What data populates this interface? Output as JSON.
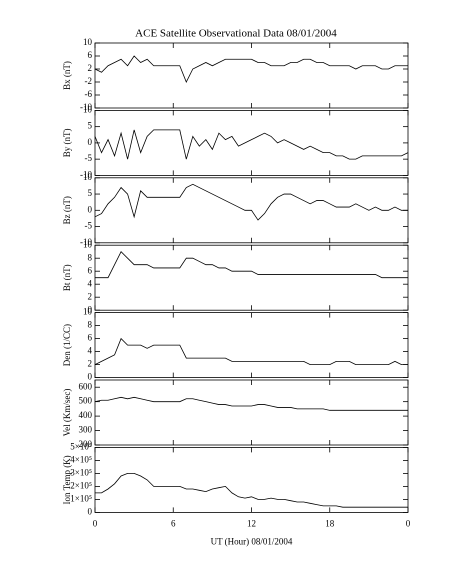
{
  "title": "ACE Satellite Observational Data   08/01/2004",
  "chart_data": [
    {
      "type": "line",
      "ylabel": "Bx (nT)",
      "ylim": [
        -10,
        10
      ],
      "yticks": [
        -10,
        -6,
        -2,
        2,
        6,
        10
      ],
      "xlim": [
        0,
        24
      ],
      "xticks": [
        0,
        6,
        12,
        18,
        {
          "value": 24,
          "label": "0"
        }
      ],
      "color": "#000000",
      "x": [
        0,
        0.5,
        1,
        1.5,
        2,
        2.5,
        3,
        3.5,
        4,
        4.5,
        5,
        5.5,
        6,
        6.5,
        7,
        7.5,
        8,
        8.5,
        9,
        9.5,
        10,
        10.5,
        11,
        11.5,
        12,
        12.5,
        13,
        13.5,
        14,
        14.5,
        15,
        15.5,
        16,
        16.5,
        17,
        17.5,
        18,
        18.5,
        19,
        19.5,
        20,
        20.5,
        21,
        21.5,
        22,
        22.5,
        23,
        23.5,
        24
      ],
      "values": [
        2,
        1,
        3,
        4,
        5,
        3,
        6,
        4,
        5,
        3,
        3,
        3,
        3,
        3,
        -2,
        2,
        3,
        4,
        3,
        4,
        5,
        5,
        5,
        5,
        5,
        4,
        4,
        3,
        3,
        3,
        4,
        4,
        5,
        5,
        4,
        4,
        3,
        3,
        3,
        3,
        2,
        3,
        3,
        3,
        2,
        2,
        3,
        3,
        3
      ]
    },
    {
      "type": "line",
      "ylabel": "By (nT)",
      "ylim": [
        -10,
        10
      ],
      "yticks": [
        -10,
        -5,
        0,
        5,
        10
      ],
      "xlim": [
        0,
        24
      ],
      "xticks": [
        0,
        6,
        12,
        18,
        {
          "value": 24,
          "label": "0"
        }
      ],
      "color": "#000000",
      "x": [
        0,
        0.5,
        1,
        1.5,
        2,
        2.5,
        3,
        3.5,
        4,
        4.5,
        5,
        5.5,
        6,
        6.5,
        7,
        7.5,
        8,
        8.5,
        9,
        9.5,
        10,
        10.5,
        11,
        11.5,
        12,
        12.5,
        13,
        13.5,
        14,
        14.5,
        15,
        15.5,
        16,
        16.5,
        17,
        17.5,
        18,
        18.5,
        19,
        19.5,
        20,
        20.5,
        21,
        21.5,
        22,
        22.5,
        23,
        23.5,
        24
      ],
      "values": [
        2,
        -3,
        1,
        -4,
        3,
        -5,
        4,
        -3,
        2,
        4,
        4,
        4,
        4,
        4,
        -5,
        2,
        -1,
        1,
        -2,
        3,
        1,
        2,
        -1,
        0,
        1,
        2,
        3,
        2,
        0,
        1,
        0,
        -1,
        -2,
        -1,
        -2,
        -3,
        -3,
        -4,
        -4,
        -5,
        -5,
        -4,
        -4,
        -4,
        -4,
        -4,
        -4,
        -4,
        -3
      ]
    },
    {
      "type": "line",
      "ylabel": "Bz (nT)",
      "ylim": [
        -10,
        10
      ],
      "yticks": [
        -10,
        -5,
        0,
        5,
        10
      ],
      "xlim": [
        0,
        24
      ],
      "xticks": [
        0,
        6,
        12,
        18,
        {
          "value": 24,
          "label": "0"
        }
      ],
      "color": "#000000",
      "x": [
        0,
        0.5,
        1,
        1.5,
        2,
        2.5,
        3,
        3.5,
        4,
        4.5,
        5,
        5.5,
        6,
        6.5,
        7,
        7.5,
        8,
        8.5,
        9,
        9.5,
        10,
        10.5,
        11,
        11.5,
        12,
        12.5,
        13,
        13.5,
        14,
        14.5,
        15,
        15.5,
        16,
        16.5,
        17,
        17.5,
        18,
        18.5,
        19,
        19.5,
        20,
        20.5,
        21,
        21.5,
        22,
        22.5,
        23,
        23.5,
        24
      ],
      "values": [
        -2,
        -1,
        2,
        4,
        7,
        5,
        -2,
        6,
        4,
        4,
        4,
        4,
        4,
        4,
        7,
        8,
        7,
        6,
        5,
        4,
        3,
        2,
        1,
        0,
        0,
        -3,
        -1,
        2,
        4,
        5,
        5,
        4,
        3,
        2,
        3,
        3,
        2,
        1,
        1,
        1,
        2,
        1,
        0,
        1,
        0,
        0,
        1,
        0,
        0
      ]
    },
    {
      "type": "line",
      "ylabel": "Bt (nT)",
      "ylim": [
        0,
        10
      ],
      "yticks": [
        0,
        2,
        4,
        6,
        8,
        10
      ],
      "xlim": [
        0,
        24
      ],
      "xticks": [
        0,
        6,
        12,
        18,
        {
          "value": 24,
          "label": "0"
        }
      ],
      "color": "#000000",
      "x": [
        0,
        0.5,
        1,
        1.5,
        2,
        2.5,
        3,
        3.5,
        4,
        4.5,
        5,
        5.5,
        6,
        6.5,
        7,
        7.5,
        8,
        8.5,
        9,
        9.5,
        10,
        10.5,
        11,
        11.5,
        12,
        12.5,
        13,
        13.5,
        14,
        14.5,
        15,
        15.5,
        16,
        16.5,
        17,
        17.5,
        18,
        18.5,
        19,
        19.5,
        20,
        20.5,
        21,
        21.5,
        22,
        22.5,
        23,
        23.5,
        24
      ],
      "values": [
        5,
        5,
        5,
        7,
        9,
        8,
        7,
        7,
        7,
        6.5,
        6.5,
        6.5,
        6.5,
        6.5,
        8,
        8,
        7.5,
        7,
        7,
        6.5,
        6.5,
        6,
        6,
        6,
        6,
        5.5,
        5.5,
        5.5,
        5.5,
        5.5,
        5.5,
        5.5,
        5.5,
        5.5,
        5.5,
        5.5,
        5.5,
        5.5,
        5.5,
        5.5,
        5.5,
        5.5,
        5.5,
        5.5,
        5,
        5,
        5,
        5,
        5
      ]
    },
    {
      "type": "line",
      "ylabel": "Den (1/CC)",
      "ylim": [
        0,
        10
      ],
      "yticks": [
        0,
        2,
        4,
        6,
        8,
        10
      ],
      "xlim": [
        0,
        24
      ],
      "xticks": [
        0,
        6,
        12,
        18,
        {
          "value": 24,
          "label": "0"
        }
      ],
      "color": "#000000",
      "x": [
        0,
        0.5,
        1,
        1.5,
        2,
        2.5,
        3,
        3.5,
        4,
        4.5,
        5,
        5.5,
        6,
        6.5,
        7,
        7.5,
        8,
        8.5,
        9,
        9.5,
        10,
        10.5,
        11,
        11.5,
        12,
        12.5,
        13,
        13.5,
        14,
        14.5,
        15,
        15.5,
        16,
        16.5,
        17,
        17.5,
        18,
        18.5,
        19,
        19.5,
        20,
        20.5,
        21,
        21.5,
        22,
        22.5,
        23,
        23.5,
        24
      ],
      "values": [
        2,
        2.5,
        3,
        3.5,
        6,
        5,
        5,
        5,
        4.5,
        5,
        5,
        5,
        5,
        5,
        3,
        3,
        3,
        3,
        3,
        3,
        3,
        2.5,
        2.5,
        2.5,
        2.5,
        2.5,
        2.5,
        2.5,
        2.5,
        2.5,
        2.5,
        2.5,
        2.5,
        2,
        2,
        2,
        2,
        2.5,
        2.5,
        2.5,
        2,
        2,
        2,
        2,
        2,
        2,
        2.5,
        2,
        2
      ]
    },
    {
      "type": "line",
      "ylabel": "Vel (Km/sec)",
      "ylim": [
        200,
        650
      ],
      "yticks": [
        200,
        300,
        400,
        500,
        600
      ],
      "xlim": [
        0,
        24
      ],
      "xticks": [
        0,
        6,
        12,
        18,
        {
          "value": 24,
          "label": "0"
        }
      ],
      "color": "#000000",
      "x": [
        0,
        0.5,
        1,
        1.5,
        2,
        2.5,
        3,
        3.5,
        4,
        4.5,
        5,
        5.5,
        6,
        6.5,
        7,
        7.5,
        8,
        8.5,
        9,
        9.5,
        10,
        10.5,
        11,
        11.5,
        12,
        12.5,
        13,
        13.5,
        14,
        14.5,
        15,
        15.5,
        16,
        16.5,
        17,
        17.5,
        18,
        18.5,
        19,
        19.5,
        20,
        20.5,
        21,
        21.5,
        22,
        22.5,
        23,
        23.5,
        24
      ],
      "values": [
        500,
        510,
        510,
        520,
        530,
        520,
        530,
        520,
        510,
        500,
        500,
        500,
        500,
        500,
        520,
        520,
        510,
        500,
        490,
        480,
        480,
        470,
        470,
        470,
        470,
        480,
        480,
        470,
        460,
        460,
        460,
        450,
        450,
        450,
        450,
        450,
        440,
        440,
        440,
        440,
        440,
        440,
        440,
        440,
        440,
        440,
        440,
        440,
        440
      ]
    },
    {
      "type": "line",
      "ylabel": "Ion Temp (K)",
      "xlabel": "UT (Hour)   08/01/2004",
      "ylim": [
        0,
        500000
      ],
      "yticks": [
        0,
        {
          "value": 100000,
          "label": "1×10⁵"
        },
        {
          "value": 200000,
          "label": "2×10⁵"
        },
        {
          "value": 300000,
          "label": "3×10⁵"
        },
        {
          "value": 400000,
          "label": "4×10⁵"
        },
        {
          "value": 500000,
          "label": "5×10⁵"
        }
      ],
      "xlim": [
        0,
        24
      ],
      "xticks": [
        0,
        6,
        12,
        18,
        {
          "value": 24,
          "label": "0"
        }
      ],
      "color": "#000000",
      "x": [
        0,
        0.5,
        1,
        1.5,
        2,
        2.5,
        3,
        3.5,
        4,
        4.5,
        5,
        5.5,
        6,
        6.5,
        7,
        7.5,
        8,
        8.5,
        9,
        9.5,
        10,
        10.5,
        11,
        11.5,
        12,
        12.5,
        13,
        13.5,
        14,
        14.5,
        15,
        15.5,
        16,
        16.5,
        17,
        17.5,
        18,
        18.5,
        19,
        19.5,
        20,
        20.5,
        21,
        21.5,
        22,
        22.5,
        23,
        23.5,
        24
      ],
      "values": [
        150000,
        150000,
        180000,
        220000,
        280000,
        300000,
        300000,
        280000,
        250000,
        200000,
        200000,
        200000,
        200000,
        200000,
        180000,
        180000,
        170000,
        160000,
        180000,
        190000,
        200000,
        150000,
        120000,
        110000,
        120000,
        100000,
        100000,
        110000,
        100000,
        100000,
        90000,
        80000,
        80000,
        70000,
        60000,
        50000,
        50000,
        50000,
        40000,
        40000,
        40000,
        40000,
        40000,
        40000,
        40000,
        40000,
        40000,
        40000,
        40000
      ]
    }
  ]
}
